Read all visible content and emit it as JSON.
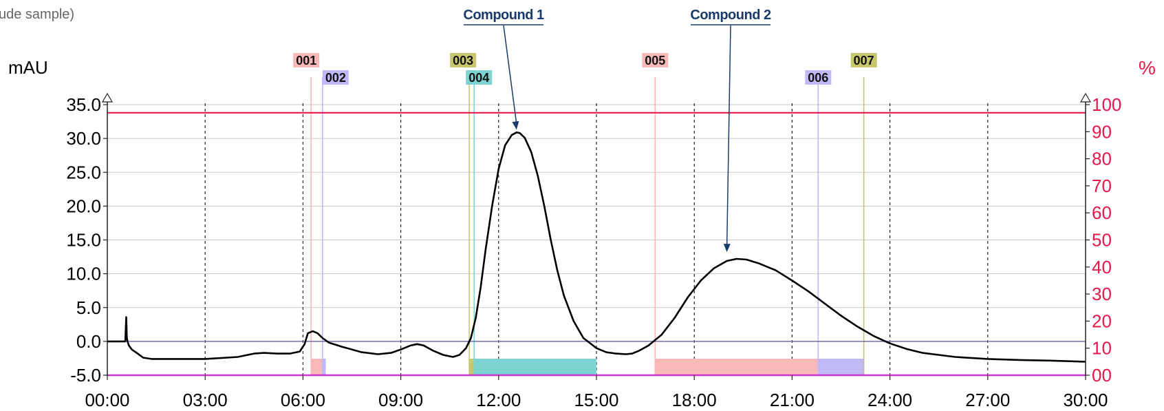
{
  "subtitle": "ude sample)",
  "chart_data": {
    "type": "line",
    "left_axis": {
      "label": "mAU",
      "ticks": [
        "35.0",
        "30.0",
        "25.0",
        "20.0",
        "15.0",
        "10.0",
        "5.0",
        "0.0",
        "-5.0"
      ],
      "ylim": [
        -5,
        35
      ],
      "color": "#000000"
    },
    "right_axis": {
      "label": "%",
      "ticks": [
        "100",
        "90",
        "80",
        "70",
        "60",
        "50",
        "40",
        "30",
        "20",
        "10",
        "00"
      ],
      "ylim": [
        0,
        100
      ],
      "color": "#e8174a"
    },
    "x_axis": {
      "ticks": [
        "00:00",
        "03:00",
        "06:00",
        "09:00",
        "12:00",
        "15:00",
        "18:00",
        "21:00",
        "24:00",
        "27:00",
        "30:00"
      ],
      "xlim": [
        0,
        30
      ],
      "unit": "min"
    },
    "grid": "horizontal solid, vertical dashed",
    "series": [
      {
        "color": "#000000",
        "x": [
          0,
          0.55,
          0.58,
          0.6,
          0.62,
          0.66,
          0.75,
          0.9,
          1.1,
          1.35,
          2.0,
          3.0,
          4.0,
          4.5,
          4.8,
          5.2,
          5.6,
          5.9,
          6.05,
          6.15,
          6.3,
          6.45,
          6.6,
          6.8,
          7.2,
          7.8,
          8.3,
          8.7,
          9.0,
          9.3,
          9.5,
          9.7,
          10.0,
          10.3,
          10.6,
          10.8,
          11.0,
          11.15,
          11.3,
          11.45,
          11.6,
          11.8,
          12.0,
          12.2,
          12.4,
          12.55,
          12.65,
          12.8,
          13.0,
          13.2,
          13.4,
          13.6,
          13.8,
          14.0,
          14.3,
          14.6,
          15.0,
          15.3,
          15.6,
          15.9,
          16.1,
          16.3,
          16.6,
          17.0,
          17.4,
          17.8,
          18.2,
          18.6,
          19.0,
          19.3,
          19.6,
          20.0,
          20.5,
          21.0,
          21.5,
          22.0,
          22.5,
          23.0,
          23.5,
          24.0,
          24.5,
          25.0,
          26.0,
          27.0,
          28.0,
          29.0,
          30.0
        ],
        "values": [
          0.0,
          0.0,
          3.6,
          0.5,
          0.0,
          -0.6,
          -1.2,
          -1.7,
          -2.4,
          -2.6,
          -2.6,
          -2.6,
          -2.3,
          -1.8,
          -1.7,
          -1.8,
          -1.8,
          -1.5,
          -0.4,
          1.2,
          1.5,
          1.2,
          0.5,
          -0.2,
          -0.8,
          -1.6,
          -1.9,
          -1.7,
          -1.2,
          -0.6,
          -0.4,
          -0.6,
          -1.4,
          -2.0,
          -2.3,
          -2.0,
          -1.0,
          0.5,
          3.5,
          8.0,
          13.5,
          20.0,
          25.5,
          29.0,
          30.5,
          30.9,
          30.8,
          30.1,
          28.0,
          24.5,
          20.0,
          15.0,
          10.5,
          6.8,
          3.0,
          0.5,
          -1.0,
          -1.6,
          -1.8,
          -1.9,
          -1.8,
          -1.4,
          -0.6,
          1.0,
          3.5,
          6.5,
          9.0,
          10.8,
          11.9,
          12.2,
          12.1,
          11.5,
          10.5,
          9.0,
          7.4,
          5.6,
          3.8,
          2.2,
          0.8,
          -0.3,
          -1.1,
          -1.7,
          -2.3,
          -2.6,
          -2.75,
          -2.85,
          -3.0
        ]
      }
    ],
    "gradient_line": {
      "color": "#e8174a",
      "percent": [
        97,
        97
      ]
    },
    "baseline_line": {
      "color": "#6f6fa8",
      "mAU": 0
    },
    "bottom_line": {
      "color": "#cc33cc",
      "mAU": -5
    },
    "fractions": [
      {
        "label": "001",
        "time": 6.25,
        "end": 6.6,
        "color": "#f9b9b9"
      },
      {
        "label": "002",
        "time": 6.6,
        "end": 6.7,
        "color": "#c0b9f7"
      },
      {
        "label": "003",
        "time": 11.1,
        "end": 11.25,
        "color": "#c8c76e"
      },
      {
        "label": "004",
        "time": 11.25,
        "end": 15.0,
        "color": "#7dd3cf"
      },
      {
        "label": "005",
        "time": 16.8,
        "end": 21.8,
        "color": "#f9b9b9"
      },
      {
        "label": "006",
        "time": 21.8,
        "end": 23.2,
        "color": "#c0b9f7"
      },
      {
        "label": "007",
        "time": 23.2,
        "end": 23.2,
        "color": "#c8c76e"
      }
    ],
    "annotations": [
      {
        "text": "Compound 1",
        "time": 12.55,
        "mAU": 31.3,
        "color": "#1a3a6b"
      },
      {
        "text": "Compound 2",
        "time": 19.0,
        "mAU": 13.2,
        "color": "#1a3a6b"
      }
    ]
  }
}
